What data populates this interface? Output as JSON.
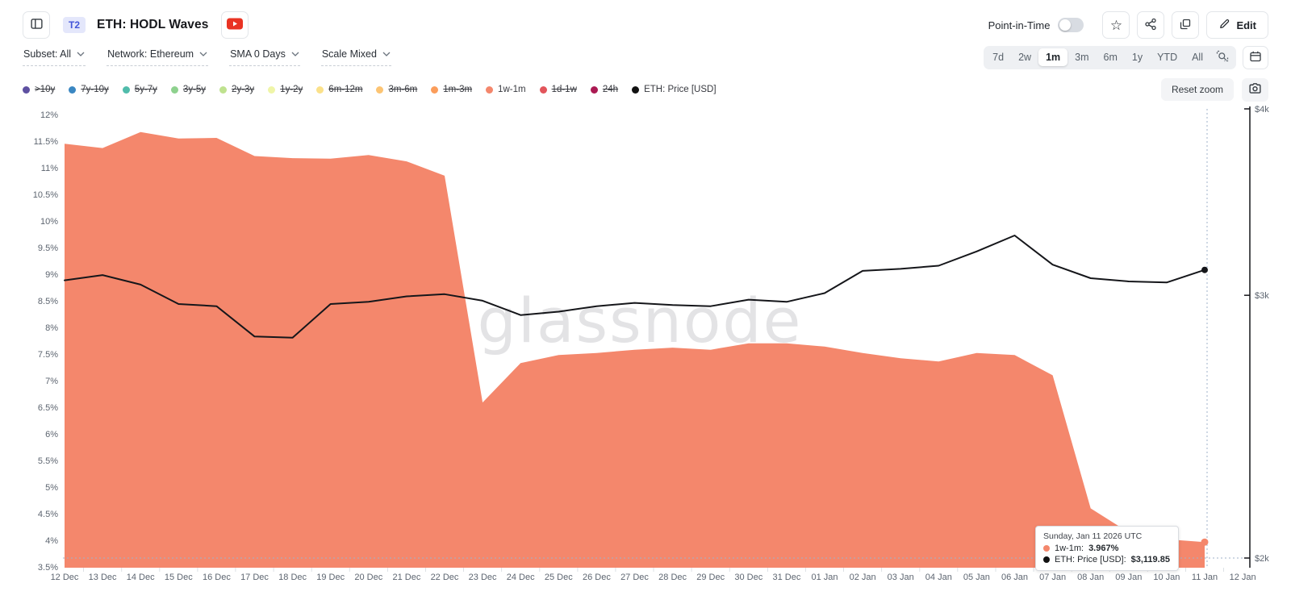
{
  "header": {
    "badge": "T2",
    "title": "ETH: HODL Waves",
    "point_in_time": {
      "label": "Point-in-Time",
      "enabled": false
    },
    "edit_label": "Edit"
  },
  "toolbar": {
    "dropdowns": [
      {
        "id": "subset",
        "label": "Subset: All"
      },
      {
        "id": "network",
        "label": "Network: Ethereum"
      },
      {
        "id": "sma",
        "label": "SMA 0 Days"
      },
      {
        "id": "scale",
        "label": "Scale Mixed"
      }
    ],
    "ranges": [
      "7d",
      "2w",
      "1m",
      "3m",
      "6m",
      "1y",
      "YTD",
      "All"
    ],
    "active_range": "1m"
  },
  "legend": {
    "items": [
      {
        "label": ">10y",
        "color": "#5e50a1",
        "active": false
      },
      {
        "label": "7y-10y",
        "color": "#3a87c2",
        "active": false
      },
      {
        "label": "5y-7y",
        "color": "#50bcab",
        "active": false
      },
      {
        "label": "3y-5y",
        "color": "#8ed18e",
        "active": false
      },
      {
        "label": "2y-3y",
        "color": "#bfe28f",
        "active": false
      },
      {
        "label": "1y-2y",
        "color": "#eff5a8",
        "active": false
      },
      {
        "label": "6m-12m",
        "color": "#fbe18a",
        "active": false
      },
      {
        "label": "3m-6m",
        "color": "#fcc473",
        "active": false
      },
      {
        "label": "1m-3m",
        "color": "#fb9d5b",
        "active": false
      },
      {
        "label": "1w-1m",
        "color": "#f4876c",
        "active": true
      },
      {
        "label": "1d-1w",
        "color": "#e2555b",
        "active": false
      },
      {
        "label": "24h",
        "color": "#ab1a53",
        "active": false
      },
      {
        "label": "ETH: Price [USD]",
        "color": "#111111",
        "active": true
      }
    ]
  },
  "chart": {
    "reset_zoom_label": "Reset zoom"
  },
  "tooltip": {
    "title": "Sunday, Jan 11 2026 UTC",
    "rows": [
      {
        "label": "1w-1m:",
        "value": "3.967%",
        "color": "#f4876c"
      },
      {
        "label": "ETH: Price [USD]:",
        "value": "$3,119.85",
        "color": "#111111"
      }
    ]
  },
  "chart_data": {
    "type": "area",
    "title": "ETH: HODL Waves",
    "grid": false,
    "legend_position": "top",
    "watermark": "glassnode",
    "x_axis_labels": [
      "12 Dec",
      "13 Dec",
      "14 Dec",
      "15 Dec",
      "16 Dec",
      "17 Dec",
      "18 Dec",
      "19 Dec",
      "20 Dec",
      "21 Dec",
      "22 Dec",
      "23 Dec",
      "24 Dec",
      "25 Dec",
      "26 Dec",
      "27 Dec",
      "28 Dec",
      "29 Dec",
      "30 Dec",
      "31 Dec",
      "01 Jan",
      "02 Jan",
      "03 Jan",
      "04 Jan",
      "05 Jan",
      "06 Jan",
      "07 Jan",
      "08 Jan",
      "09 Jan",
      "10 Jan",
      "11 Jan",
      "12 Jan"
    ],
    "categories": [
      "12 Dec",
      "13 Dec",
      "14 Dec",
      "15 Dec",
      "16 Dec",
      "17 Dec",
      "18 Dec",
      "19 Dec",
      "20 Dec",
      "21 Dec",
      "22 Dec",
      "23 Dec",
      "24 Dec",
      "25 Dec",
      "26 Dec",
      "27 Dec",
      "28 Dec",
      "29 Dec",
      "30 Dec",
      "31 Dec",
      "01 Jan",
      "02 Jan",
      "03 Jan",
      "04 Jan",
      "05 Jan",
      "06 Jan",
      "07 Jan",
      "08 Jan",
      "09 Jan",
      "10 Jan",
      "11 Jan"
    ],
    "series": [
      {
        "name": "1w-1m",
        "type": "area",
        "color": "#f4876c",
        "y_axis": "percent",
        "values": [
          11.45,
          11.37,
          11.67,
          11.55,
          11.56,
          11.22,
          11.18,
          11.17,
          11.24,
          11.12,
          10.85,
          6.59,
          7.33,
          7.48,
          7.52,
          7.58,
          7.62,
          7.58,
          7.7,
          7.7,
          7.64,
          7.52,
          7.42,
          7.36,
          7.52,
          7.48,
          7.1,
          4.6,
          4.15,
          4.02,
          3.967
        ]
      },
      {
        "name": "ETH: Price [USD]",
        "type": "line",
        "color": "#111111",
        "y_axis": "price",
        "values": [
          3070,
          3095,
          3050,
          2960,
          2950,
          2815,
          2810,
          2960,
          2970,
          2995,
          3005,
          2975,
          2910,
          2925,
          2950,
          2965,
          2955,
          2950,
          2980,
          2970,
          3010,
          3115,
          3125,
          3140,
          3210,
          3290,
          3145,
          3080,
          3065,
          3060,
          3119.85
        ]
      }
    ],
    "y_left": {
      "unit": "%",
      "scale": "linear",
      "min": 3.5,
      "max": 12,
      "tick_labels": [
        "12%",
        "11.5%",
        "11%",
        "10.5%",
        "10%",
        "9.5%",
        "9%",
        "8.5%",
        "8%",
        "7.5%",
        "7%",
        "6.5%",
        "6%",
        "5.5%",
        "5%",
        "4.5%",
        "4%",
        "3.5%"
      ]
    },
    "y_right": {
      "unit": "USD",
      "scale": "log",
      "min": 2000,
      "max": 4000,
      "tick_labels": [
        "$4k",
        "$3k",
        "$2k"
      ],
      "tick_values": [
        4000,
        3000,
        2000
      ]
    },
    "hover_point": {
      "category": "11 Jan",
      "series": "1w-1m",
      "value": 3.967,
      "price": 3119.85
    }
  }
}
